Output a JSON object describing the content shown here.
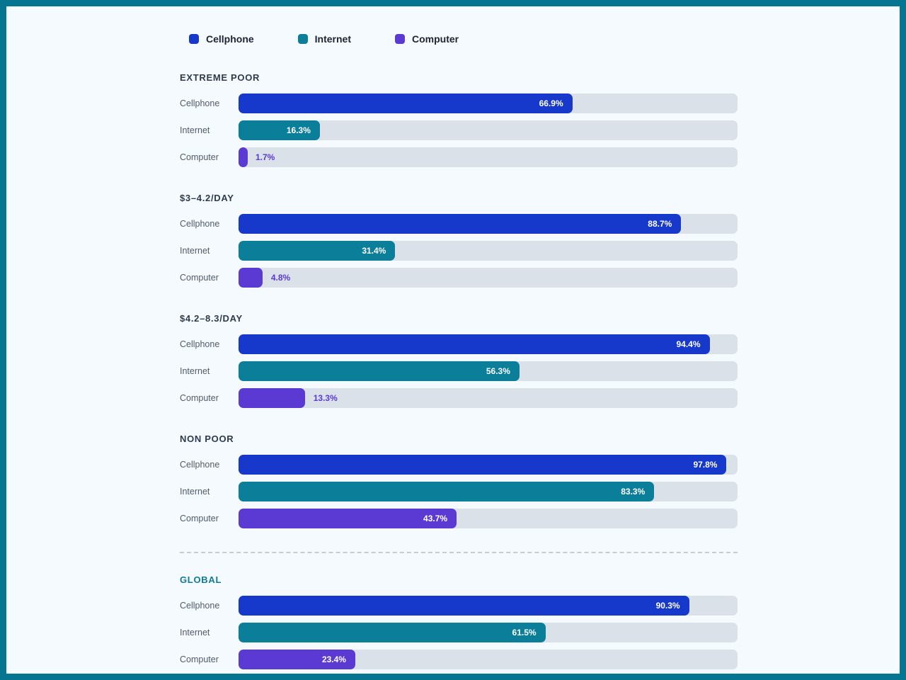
{
  "colors": {
    "frame": "#057590",
    "page_bg": "#f4fafd",
    "track": "#dbe1e9",
    "cellphone": "#1739cb",
    "internet": "#0b7e99",
    "computer": "#5a3ad2",
    "section_header": "#2e3a4d",
    "global_header": "#0e7b95",
    "row_label": "#525b6b",
    "divider": "#c4ccd6",
    "value_label_inside": "#ffffff"
  },
  "legend": {
    "items": [
      {
        "label": "Cellphone",
        "series": "cellphone"
      },
      {
        "label": "Internet",
        "series": "internet"
      },
      {
        "label": "Computer",
        "series": "computer"
      }
    ]
  },
  "chart_data": {
    "type": "bar",
    "orientation": "horizontal",
    "value_unit": "%",
    "xlim": [
      0,
      100
    ],
    "grid": false,
    "legend_position": "top-left",
    "series_names": [
      "Cellphone",
      "Internet",
      "Computer"
    ],
    "label_inside_threshold": 15,
    "groups": [
      {
        "label": "EXTREME POOR",
        "rows": [
          {
            "label": "Cellphone",
            "series": "cellphone",
            "value": 66.9,
            "display": "66.9%"
          },
          {
            "label": "Internet",
            "series": "internet",
            "value": 16.3,
            "display": "16.3%"
          },
          {
            "label": "Computer",
            "series": "computer",
            "value": 1.7,
            "display": "1.7%"
          }
        ]
      },
      {
        "label": "$3–4.2/DAY",
        "rows": [
          {
            "label": "Cellphone",
            "series": "cellphone",
            "value": 88.7,
            "display": "88.7%"
          },
          {
            "label": "Internet",
            "series": "internet",
            "value": 31.4,
            "display": "31.4%"
          },
          {
            "label": "Computer",
            "series": "computer",
            "value": 4.8,
            "display": "4.8%"
          }
        ]
      },
      {
        "label": "$4.2–8.3/DAY",
        "rows": [
          {
            "label": "Cellphone",
            "series": "cellphone",
            "value": 94.4,
            "display": "94.4%"
          },
          {
            "label": "Internet",
            "series": "internet",
            "value": 56.3,
            "display": "56.3%"
          },
          {
            "label": "Computer",
            "series": "computer",
            "value": 13.3,
            "display": "13.3%"
          }
        ]
      },
      {
        "label": "NON POOR",
        "rows": [
          {
            "label": "Cellphone",
            "series": "cellphone",
            "value": 97.8,
            "display": "97.8%"
          },
          {
            "label": "Internet",
            "series": "internet",
            "value": 83.3,
            "display": "83.3%"
          },
          {
            "label": "Computer",
            "series": "computer",
            "value": 43.7,
            "display": "43.7%"
          }
        ]
      },
      {
        "label": "GLOBAL",
        "divider_before": true,
        "accent": true,
        "rows": [
          {
            "label": "Cellphone",
            "series": "cellphone",
            "value": 90.3,
            "display": "90.3%"
          },
          {
            "label": "Internet",
            "series": "internet",
            "value": 61.5,
            "display": "61.5%"
          },
          {
            "label": "Computer",
            "series": "computer",
            "value": 23.4,
            "display": "23.4%"
          }
        ]
      }
    ]
  }
}
